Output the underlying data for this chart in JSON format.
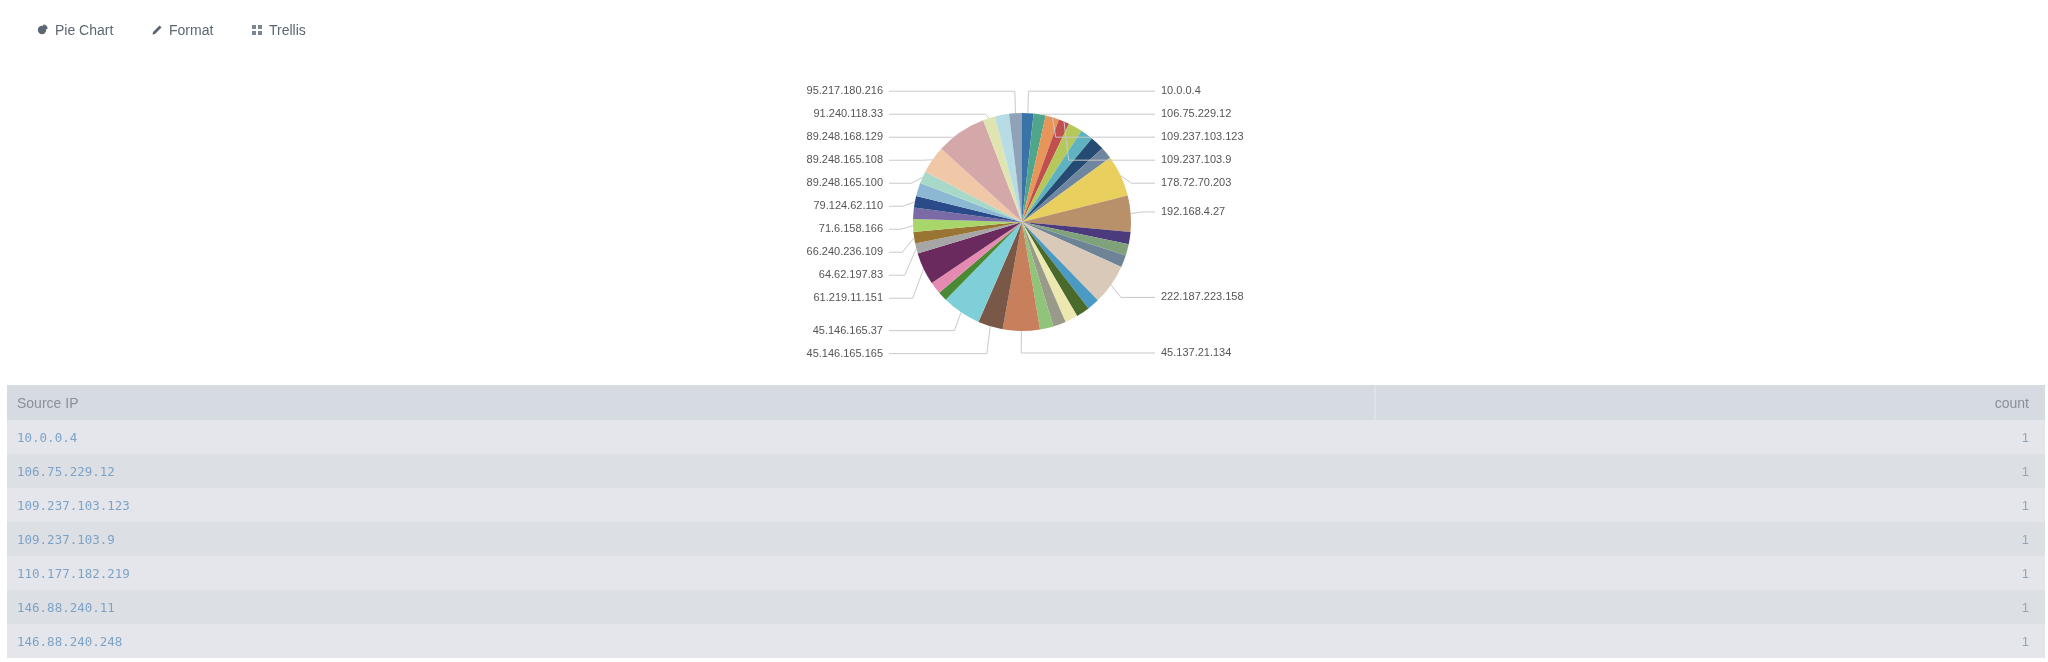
{
  "chart_data": {
    "type": "pie",
    "categories": [
      "10.0.0.4",
      "106.75.229.12",
      "109.237.103.123",
      "109.237.103.9",
      null,
      null,
      null,
      null,
      "178.72.70.203",
      "192.168.4.27",
      null,
      null,
      null,
      "222.187.223.158",
      null,
      null,
      null,
      null,
      null,
      "45.137.21.134",
      "45.146.165.165",
      "45.146.165.37",
      null,
      null,
      "61.219.11.151",
      "64.62.197.83",
      "66.240.236.109",
      "71.6.158.166",
      null,
      "79.124.62.110",
      null,
      "89.248.165.100",
      "89.248.165.108",
      "89.248.168.129",
      "91.240.118.33",
      null,
      "95.217.180.216"
    ],
    "values": [
      1.7,
      1.8,
      2.0,
      1.6,
      2.1,
      1.9,
      2.1,
      1.8,
      6.1,
      5.4,
      1.8,
      1.7,
      1.8,
      6.0,
      1.8,
      2.0,
      1.9,
      1.9,
      2.0,
      5.5,
      3.7,
      5.8,
      1.4,
      1.8,
      4.8,
      1.5,
      1.7,
      1.9,
      1.7,
      1.7,
      2.0,
      1.8,
      4.1,
      7.5,
      1.8,
      2.1,
      1.9
    ],
    "colors": [
      "#3a73a8",
      "#4fa68a",
      "#e8955a",
      "#c0504d",
      "#b5c95a",
      "#5fb3c0",
      "#264b73",
      "#6f86a0",
      "#e8cf5e",
      "#b8916a",
      "#4b3a7c",
      "#7fa27a",
      "#6e8496",
      "#d9c9b8",
      "#4a9ac4",
      "#4a6a2c",
      "#ece8b0",
      "#9a9a8a",
      "#8fc47a",
      "#c8805c",
      "#7a5848",
      "#7fcfd8",
      "#4a8a34",
      "#e58ab0",
      "#6a2a5e",
      "#a6a6a6",
      "#9a7432",
      "#a8d66a",
      "#7a6aa6",
      "#2a4a8a",
      "#8cb8d4",
      "#a8d8c8",
      "#f0c8a8",
      "#d4a8a8",
      "#dfe4b0",
      "#b8dce6",
      "#8fa2b8"
    ],
    "annotations": [
      "Pie Chart",
      "Format",
      "Trellis",
      "Source IP",
      "count",
      "10.0.0.4",
      "1",
      "106.75.229.12",
      "1",
      "109.237.103.123",
      "1",
      "109.237.103.9",
      "1",
      "110.177.182.219",
      "1",
      "146.88.240.11",
      "1",
      "146.88.240.248",
      "1"
    ]
  }
}
